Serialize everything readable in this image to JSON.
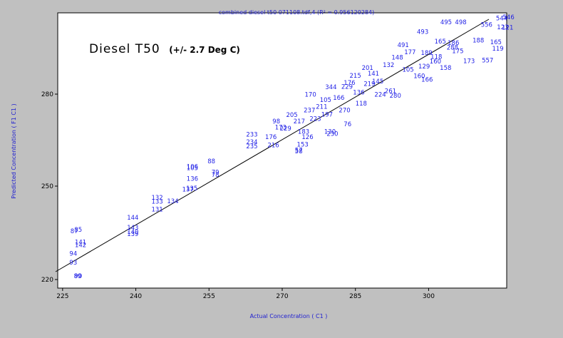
{
  "chart_data": {
    "type": "scatter",
    "title": "combined diesel t50 071108.tdf,4  (R² = 0.956120284)",
    "xlabel": "Actual Concentration ( C1 )",
    "ylabel": "Predicted Concentration ( F1 C1 )",
    "annotation_main": "Diesel T50",
    "annotation_sub": "(+/- 2.7 Deg C)",
    "xlim": [
      224,
      316
    ],
    "ylim": [
      221,
      300
    ],
    "xticks": [
      225,
      240,
      255,
      270,
      285,
      300
    ],
    "yticks": [
      220,
      250,
      280
    ],
    "grid": false,
    "point_color": "#1e1ee6",
    "regression_line": {
      "x": [
        224,
        316
      ],
      "y": [
        220.5,
        299
      ]
    },
    "points": [
      {
        "label": "87",
        "x": 226.6,
        "y": 236.8
      },
      {
        "label": "85",
        "x": 227.4,
        "y": 237.2
      },
      {
        "label": "141",
        "x": 227.5,
        "y": 233.6
      },
      {
        "label": "142",
        "x": 227.5,
        "y": 232.8
      },
      {
        "label": "94",
        "x": 226.4,
        "y": 230.3
      },
      {
        "label": "93",
        "x": 226.4,
        "y": 227.8
      },
      {
        "label": "89",
        "x": 227.3,
        "y": 223.9
      },
      {
        "label": "90",
        "x": 227.4,
        "y": 223.9
      },
      {
        "label": "144",
        "x": 238.2,
        "y": 240.6
      },
      {
        "label": "143",
        "x": 238.2,
        "y": 237.8
      },
      {
        "label": "140",
        "x": 238.2,
        "y": 236.6
      },
      {
        "label": "139",
        "x": 238.2,
        "y": 235.9
      },
      {
        "label": "132",
        "x": 243.2,
        "y": 246.4
      },
      {
        "label": "133",
        "x": 243.2,
        "y": 245.3
      },
      {
        "label": "134",
        "x": 246.4,
        "y": 245.4
      },
      {
        "label": "131",
        "x": 243.2,
        "y": 243.0
      },
      {
        "label": "137",
        "x": 249.5,
        "y": 248.7
      },
      {
        "label": "135",
        "x": 250.3,
        "y": 249.0
      },
      {
        "label": "136",
        "x": 250.4,
        "y": 251.8
      },
      {
        "label": "106",
        "x": 250.4,
        "y": 255.3
      },
      {
        "label": "105",
        "x": 250.4,
        "y": 254.9
      },
      {
        "label": "88",
        "x": 254.7,
        "y": 256.8
      },
      {
        "label": "79",
        "x": 255.5,
        "y": 253.6
      },
      {
        "label": "78",
        "x": 255.5,
        "y": 252.9
      },
      {
        "label": "233",
        "x": 262.6,
        "y": 264.5
      },
      {
        "label": "234",
        "x": 262.6,
        "y": 262.3
      },
      {
        "label": "235",
        "x": 262.6,
        "y": 261.1
      },
      {
        "label": "176",
        "x": 266.5,
        "y": 263.8
      },
      {
        "label": "216",
        "x": 267.0,
        "y": 261.4
      },
      {
        "label": "98",
        "x": 268.0,
        "y": 268.3
      },
      {
        "label": "173",
        "x": 268.5,
        "y": 266.5
      },
      {
        "label": "229",
        "x": 269.5,
        "y": 266.2
      },
      {
        "label": "153",
        "x": 273.0,
        "y": 261.6
      },
      {
        "label": "126",
        "x": 274.0,
        "y": 263.8
      },
      {
        "label": "57",
        "x": 272.6,
        "y": 260.0
      },
      {
        "label": "58",
        "x": 272.6,
        "y": 259.7
      },
      {
        "label": "170",
        "x": 274.6,
        "y": 276.0
      },
      {
        "label": "344",
        "x": 278.8,
        "y": 278.1
      },
      {
        "label": "176",
        "x": 282.6,
        "y": 279.3
      },
      {
        "label": "118",
        "x": 285.0,
        "y": 273.4
      },
      {
        "label": "130",
        "x": 278.6,
        "y": 265.3
      },
      {
        "label": "76",
        "x": 282.6,
        "y": 267.5
      },
      {
        "label": "230",
        "x": 279.1,
        "y": 264.7
      },
      {
        "label": "280",
        "x": 292.0,
        "y": 275.6
      },
      {
        "label": "166",
        "x": 298.5,
        "y": 280.3
      },
      {
        "label": "160",
        "x": 300.2,
        "y": 285.5
      },
      {
        "label": "158",
        "x": 302.3,
        "y": 283.6
      },
      {
        "label": "173",
        "x": 307.1,
        "y": 285.6
      },
      {
        "label": "186",
        "x": 303.9,
        "y": 290.8
      },
      {
        "label": "119",
        "x": 313.0,
        "y": 289.2
      },
      {
        "label": "165",
        "x": 312.6,
        "y": 291.0
      },
      {
        "label": "121",
        "x": 315.0,
        "y": 295.2
      },
      {
        "label": "491",
        "x": 293.6,
        "y": 290.2
      },
      {
        "label": "493",
        "x": 297.6,
        "y": 294.0
      },
      {
        "label": "495",
        "x": 302.4,
        "y": 296.7
      },
      {
        "label": "498",
        "x": 305.4,
        "y": 296.7
      },
      {
        "label": "188",
        "x": 309.0,
        "y": 291.5
      },
      {
        "label": "556",
        "x": 310.7,
        "y": 296.0
      },
      {
        "label": "544",
        "x": 313.8,
        "y": 297.8
      },
      {
        "label": "546",
        "x": 315.2,
        "y": 298.2
      },
      {
        "label": "123",
        "x": 314.0,
        "y": 295.3
      },
      {
        "label": "557",
        "x": 310.9,
        "y": 285.8
      },
      {
        "label": "288",
        "x": 303.7,
        "y": 289.5
      },
      {
        "label": "270",
        "x": 281.6,
        "y": 271.5
      },
      {
        "label": "211",
        "x": 276.9,
        "y": 272.5
      },
      {
        "label": "145",
        "x": 288.4,
        "y": 279.7
      },
      {
        "label": "229",
        "x": 282.1,
        "y": 278.2
      },
      {
        "label": "105",
        "x": 277.7,
        "y": 274.4
      },
      {
        "label": "141",
        "x": 287.5,
        "y": 282.0
      },
      {
        "label": "201",
        "x": 286.3,
        "y": 283.6
      },
      {
        "label": "132",
        "x": 290.6,
        "y": 284.4
      },
      {
        "label": "177",
        "x": 295.0,
        "y": 288.1
      },
      {
        "label": "189",
        "x": 298.4,
        "y": 287.9
      },
      {
        "label": "118",
        "x": 300.4,
        "y": 286.8
      },
      {
        "label": "261",
        "x": 291.0,
        "y": 277.0
      },
      {
        "label": "105",
        "x": 294.6,
        "y": 283.1
      },
      {
        "label": "217",
        "x": 272.3,
        "y": 268.3
      },
      {
        "label": "223",
        "x": 275.6,
        "y": 269.0
      },
      {
        "label": "205",
        "x": 270.8,
        "y": 270.1
      },
      {
        "label": "136",
        "x": 284.5,
        "y": 276.6
      },
      {
        "label": "160",
        "x": 296.9,
        "y": 281.3
      },
      {
        "label": "148",
        "x": 292.4,
        "y": 286.6
      },
      {
        "label": "215",
        "x": 283.8,
        "y": 281.4
      },
      {
        "label": "166",
        "x": 280.4,
        "y": 275.0
      },
      {
        "label": "197",
        "x": 278.0,
        "y": 270.2
      },
      {
        "label": "183",
        "x": 273.2,
        "y": 265.3
      },
      {
        "label": "224",
        "x": 288.9,
        "y": 276.0
      },
      {
        "label": "165",
        "x": 301.2,
        "y": 291.2
      },
      {
        "label": "175",
        "x": 304.8,
        "y": 288.4
      },
      {
        "label": "219",
        "x": 286.7,
        "y": 279.0
      },
      {
        "label": "237",
        "x": 274.4,
        "y": 271.4
      },
      {
        "label": "129",
        "x": 297.9,
        "y": 284.0
      }
    ]
  }
}
